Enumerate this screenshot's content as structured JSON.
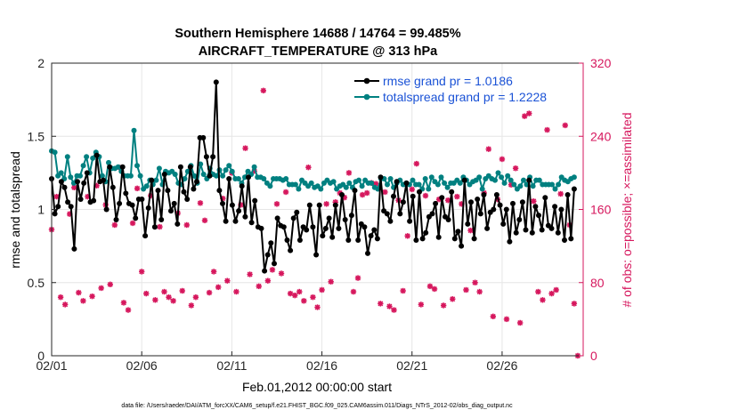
{
  "chart_data": {
    "type": "line",
    "title_line1": "Southern Hemisphere 14688 / 14764 = 99.485%",
    "title_line2": "AIRCRAFT_TEMPERATURE @ 313 hPa",
    "xlabel": "Feb.01,2012 00:00:00 start",
    "ylabel_left": "rmse and totalspread",
    "ylabel_right": "# of obs: o=possible; ×=assimilated",
    "footer": "data file: /Users/raeder/DAI/ATM_forcXX/CAM6_setup/f.e21.FHIST_BGC.f09_025.CAM6assim.011/Diags_NTrS_2012-02/obs_diag_output.nc",
    "xlim": [
      0,
      29.5
    ],
    "ylim_left": [
      0,
      2
    ],
    "ylim_right": [
      0,
      320
    ],
    "x_ticks": [
      0,
      5,
      10,
      15,
      20,
      25
    ],
    "x_tick_labels": [
      "02/01",
      "02/06",
      "02/11",
      "02/16",
      "02/21",
      "02/26"
    ],
    "y_left_ticks": [
      0,
      0.5,
      1,
      1.5,
      2
    ],
    "y_left_tick_labels": [
      "0",
      "0.5",
      "1",
      "1.5",
      "2"
    ],
    "y_right_ticks": [
      0,
      80,
      160,
      240,
      320
    ],
    "y_right_tick_labels": [
      "0",
      "80",
      "160",
      "240",
      "320"
    ],
    "grid": true,
    "legend_position": "top-right",
    "colors": {
      "rmse": "#000000",
      "spread": "#008080",
      "obs": "#d6175d",
      "grid": "#e6e6e6",
      "axis": "#262626"
    },
    "series": [
      {
        "name": "rmse grand pr = 1.0186",
        "axis": "left",
        "values": [
          1.21,
          0.97,
          1.02,
          1.19,
          1.15,
          1.05,
          1.02,
          0.73,
          1.19,
          1.07,
          1.18,
          1.25,
          1.05,
          1.06,
          1.37,
          1.19,
          1.2,
          1.0,
          1.29,
          1.15,
          0.93,
          1.04,
          1.29,
          1.11,
          1.04,
          1.03,
          0.94,
          1.07,
          1.07,
          0.82,
          1.01,
          1.2,
          0.88,
          1.13,
          0.93,
          1.24,
          1.13,
          0.99,
          1.04,
          0.9,
          1.29,
          1.12,
          1.07,
          1.29,
          1.14,
          1.19,
          1.49,
          1.49,
          1.36,
          1.23,
          1.36,
          1.87,
          1.13,
          1.04,
          0.92,
          1.21,
          1.03,
          0.92,
          0.99,
          1.16,
          0.95,
          1.22,
          0.91,
          1.06,
          0.88,
          0.87,
          0.58,
          0.69,
          0.77,
          0.63,
          0.94,
          0.89,
          0.88,
          0.79,
          0.72,
          0.94,
          0.98,
          0.79,
          0.88,
          0.86,
          1.03,
          0.88,
          0.69,
          1.03,
          0.82,
          0.87,
          0.94,
          0.81,
          1.03,
          0.87,
          1.1,
          0.93,
          0.79,
          0.96,
          1.13,
          0.79,
          0.9,
          0.88,
          0.7,
          0.82,
          0.86,
          0.8,
          1.22,
          0.99,
          0.97,
          0.92,
          1.09,
          1.19,
          0.97,
          1.05,
          1.18,
          0.92,
          1.09,
          0.79,
          1.12,
          0.8,
          0.84,
          0.95,
          0.97,
          1.04,
          0.81,
          1.08,
          0.95,
          0.93,
          1.12,
          0.8,
          0.85,
          0.75,
          1.2,
          0.9,
          1.05,
          0.8,
          1.07,
          0.97,
          1.1,
          0.87,
          0.98,
          1.0,
          1.1,
          1.03,
          0.9,
          1.0,
          0.78,
          1.04,
          0.84,
          0.93,
          1.05,
          0.86,
          1.2,
          0.84,
          1.02,
          0.96,
          0.86,
          1.08,
          0.89,
          0.87,
          1.02,
          0.84,
          1.0,
          0.79,
          1.1,
          0.8,
          1.14
        ]
      },
      {
        "name": "totalspread grand pr = 1.2228",
        "axis": "left",
        "values": [
          1.4,
          1.39,
          1.23,
          1.25,
          1.21,
          1.36,
          1.22,
          1.18,
          1.23,
          1.23,
          1.3,
          1.36,
          1.25,
          1.35,
          1.39,
          1.36,
          1.23,
          1.19,
          1.32,
          1.28,
          1.28,
          1.29,
          1.26,
          1.23,
          1.23,
          1.23,
          1.54,
          1.3,
          1.23,
          1.14,
          1.16,
          1.2,
          1.17,
          1.2,
          1.28,
          1.17,
          1.26,
          1.25,
          1.26,
          1.24,
          1.18,
          1.17,
          1.21,
          1.26,
          1.3,
          1.23,
          1.18,
          1.31,
          1.24,
          1.21,
          1.28,
          1.24,
          1.23,
          1.27,
          1.23,
          1.27,
          1.3,
          1.26,
          1.21,
          1.21,
          1.18,
          1.22,
          1.26,
          1.24,
          1.29,
          1.22,
          1.22,
          1.21,
          1.18,
          1.16,
          1.21,
          1.21,
          1.21,
          1.2,
          1.21,
          1.17,
          1.17,
          1.17,
          1.14,
          1.2,
          1.18,
          1.16,
          1.18,
          1.15,
          1.16,
          1.14,
          1.18,
          1.2,
          1.18,
          1.19,
          1.14,
          1.16,
          1.17,
          1.15,
          1.18,
          1.15,
          1.19,
          1.2,
          1.16,
          1.2,
          1.18,
          1.18,
          1.15,
          1.14,
          1.21,
          1.21,
          1.17,
          1.21,
          1.15,
          1.18,
          1.2,
          1.17,
          1.18,
          1.17,
          1.2,
          1.17,
          1.17,
          1.14,
          1.21,
          1.14,
          1.22,
          1.19,
          1.17,
          1.22,
          1.18,
          1.15,
          1.18,
          1.18,
          1.2,
          1.18,
          1.22,
          1.2,
          1.17,
          1.19,
          1.2,
          1.22,
          1.14,
          1.21,
          1.23,
          1.21,
          1.2,
          1.25,
          1.22,
          1.18,
          1.23,
          1.2,
          1.17,
          1.14,
          1.16,
          1.2,
          1.17,
          1.22,
          1.16,
          1.2,
          1.2,
          1.17,
          1.17,
          1.17,
          1.17,
          1.14,
          1.17,
          1.22,
          1.2,
          1.19,
          1.21,
          1.22
        ]
      },
      {
        "name": "obs",
        "axis": "right",
        "points": [
          [
            0.0,
            138
          ],
          [
            0.28,
            174
          ],
          [
            0.5,
            64
          ],
          [
            0.75,
            56
          ],
          [
            1.0,
            155
          ],
          [
            1.25,
            184
          ],
          [
            1.5,
            69
          ],
          [
            1.75,
            60
          ],
          [
            2.0,
            174
          ],
          [
            2.25,
            65
          ],
          [
            2.5,
            186
          ],
          [
            2.75,
            74
          ],
          [
            3.0,
            165
          ],
          [
            3.25,
            78
          ],
          [
            3.5,
            143
          ],
          [
            3.75,
            206
          ],
          [
            4.0,
            58
          ],
          [
            4.25,
            50
          ],
          [
            4.5,
            145
          ],
          [
            4.75,
            183
          ],
          [
            5.0,
            92
          ],
          [
            5.25,
            68
          ],
          [
            5.5,
            175
          ],
          [
            5.75,
            61
          ],
          [
            6.0,
            141
          ],
          [
            6.25,
            70
          ],
          [
            6.5,
            64
          ],
          [
            6.75,
            60
          ],
          [
            7.0,
            156
          ],
          [
            7.25,
            71
          ],
          [
            7.5,
            143
          ],
          [
            7.75,
            55
          ],
          [
            8.0,
            64
          ],
          [
            8.25,
            167
          ],
          [
            8.5,
            148
          ],
          [
            8.75,
            69
          ],
          [
            9.0,
            92
          ],
          [
            9.25,
            75
          ],
          [
            9.5,
            172
          ],
          [
            9.75,
            82
          ],
          [
            10.0,
            200
          ],
          [
            10.25,
            70
          ],
          [
            10.5,
            165
          ],
          [
            10.75,
            227
          ],
          [
            11.0,
            89
          ],
          [
            11.25,
            202
          ],
          [
            11.5,
            76
          ],
          [
            11.75,
            290
          ],
          [
            12.0,
            82
          ],
          [
            12.25,
            94
          ],
          [
            12.5,
            166
          ],
          [
            12.75,
            90
          ],
          [
            13.0,
            179
          ],
          [
            13.25,
            68
          ],
          [
            13.5,
            66
          ],
          [
            13.75,
            70
          ],
          [
            14.0,
            60
          ],
          [
            14.25,
            206
          ],
          [
            14.5,
            64
          ],
          [
            14.75,
            53
          ],
          [
            15.0,
            72
          ],
          [
            15.25,
            166
          ],
          [
            15.5,
            81
          ],
          [
            15.75,
            168
          ],
          [
            16.0,
            178
          ],
          [
            16.25,
            173
          ],
          [
            16.5,
            200
          ],
          [
            16.75,
            70
          ],
          [
            17.0,
            85
          ],
          [
            17.25,
            176
          ],
          [
            17.5,
            178
          ],
          [
            17.75,
            189
          ],
          [
            18.0,
            188
          ],
          [
            18.25,
            57
          ],
          [
            18.5,
            179
          ],
          [
            18.75,
            54
          ],
          [
            19.0,
            50
          ],
          [
            19.25,
            170
          ],
          [
            19.5,
            71
          ],
          [
            19.75,
            131
          ],
          [
            20.0,
            182
          ],
          [
            20.25,
            210
          ],
          [
            20.5,
            56
          ],
          [
            20.75,
            175
          ],
          [
            21.0,
            76
          ],
          [
            21.25,
            73
          ],
          [
            21.5,
            171
          ],
          [
            21.75,
            55
          ],
          [
            22.0,
            170
          ],
          [
            22.25,
            62
          ],
          [
            22.5,
            174
          ],
          [
            22.75,
            166
          ],
          [
            23.0,
            72
          ],
          [
            23.25,
            137
          ],
          [
            23.5,
            80
          ],
          [
            23.75,
            70
          ],
          [
            24.0,
            178
          ],
          [
            24.25,
            226
          ],
          [
            24.5,
            43
          ],
          [
            24.75,
            171
          ],
          [
            25.0,
            215
          ],
          [
            25.25,
            40
          ],
          [
            25.5,
            187
          ],
          [
            25.75,
            205
          ],
          [
            26.0,
            36
          ],
          [
            26.25,
            262
          ],
          [
            26.5,
            265
          ],
          [
            26.75,
            169
          ],
          [
            27.0,
            70
          ],
          [
            27.25,
            61
          ],
          [
            27.5,
            247
          ],
          [
            27.75,
            68
          ],
          [
            28.0,
            72
          ],
          [
            28.25,
            177
          ],
          [
            28.5,
            252
          ],
          [
            28.75,
            143
          ],
          [
            29.0,
            57
          ],
          [
            29.2,
            0
          ]
        ]
      }
    ]
  }
}
